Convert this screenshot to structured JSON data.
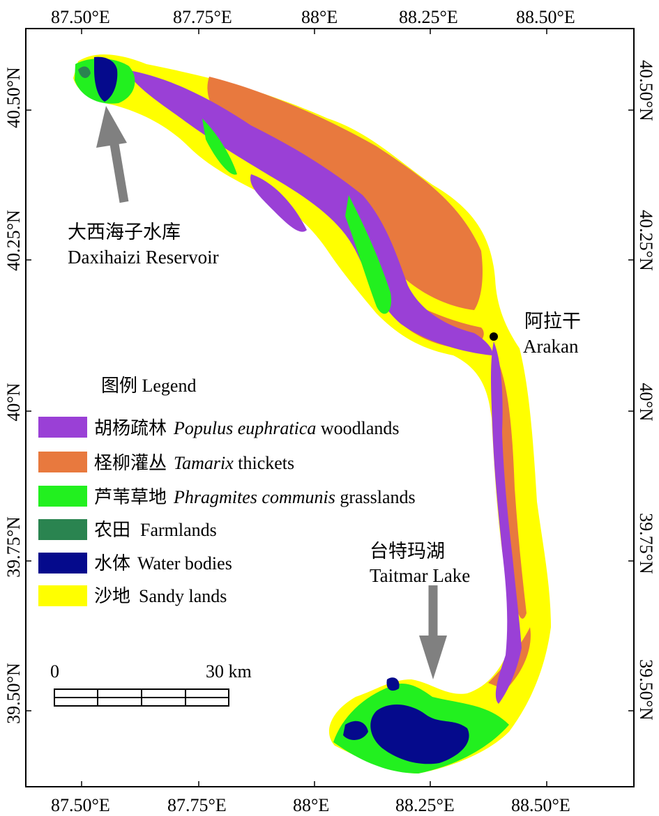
{
  "map": {
    "top_ticks": [
      "87.50°E",
      "87.75°E",
      "88°E",
      "88.25°E",
      "88.50°E"
    ],
    "bottom_ticks": [
      "87.50°E",
      "87.75°E",
      "88°E",
      "88.25°E",
      "88.50°E"
    ],
    "left_ticks": [
      "40.50°N",
      "40.25°N",
      "40°N",
      "39.75°N",
      "39.50°N"
    ],
    "right_ticks": [
      "40.50°N",
      "40.25°N",
      "40°N",
      "39.75°N",
      "39.50°N"
    ]
  },
  "places": {
    "reservoir_cn": "大西海子水库",
    "reservoir_en": "Daxihaizi Reservoir",
    "arakan_cn": "阿拉干",
    "arakan_en": "Arakan",
    "lake_cn": "台特玛湖",
    "lake_en": "Taitmar Lake"
  },
  "legend": {
    "title": "图例  Legend",
    "items": [
      {
        "cn": "胡杨疏林",
        "en_italic": "Populus euphratica",
        "en_plain": " woodlands",
        "color": "#9a40d6"
      },
      {
        "cn": "柽柳灌丛",
        "en_italic": "Tamarix",
        "en_plain": " thickets",
        "color": "#e8793e"
      },
      {
        "cn": "芦苇草地",
        "en_italic": "Phragmites communis",
        "en_plain": " grasslands",
        "color": "#22f01f"
      },
      {
        "cn": "农田",
        "en_italic": "",
        "en_plain": "Farmlands",
        "color": "#2a8450"
      },
      {
        "cn": "水体",
        "en_italic": "",
        "en_plain": "Water bodies",
        "color": "#050a8c"
      },
      {
        "cn": "沙地",
        "en_italic": "",
        "en_plain": "Sandy lands",
        "color": "#ffff00"
      }
    ]
  },
  "scalebar": {
    "start_label": "0",
    "end_label": "30 km"
  },
  "colors": {
    "sandy": "#ffff00",
    "populus": "#9a40d6",
    "tamarix": "#e8793e",
    "phragmites": "#22f01f",
    "farmland": "#2a8450",
    "water": "#050a8c",
    "arrow": "#808080"
  }
}
